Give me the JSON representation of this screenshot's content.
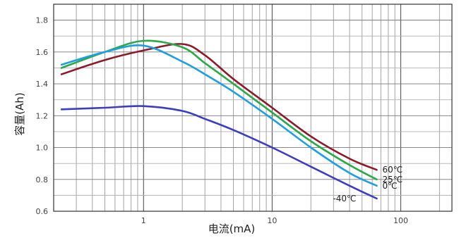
{
  "chart_data": {
    "type": "line",
    "title": "",
    "xlabel": "电流(mA)",
    "ylabel": "容量(Ah)",
    "xscale": "log",
    "xlim": [
      0.2,
      250
    ],
    "ylim": [
      0.6,
      1.9
    ],
    "grid": true,
    "x_ticks": [
      {
        "value": 1,
        "label": "1"
      },
      {
        "value": 10,
        "label": "10"
      },
      {
        "value": 100,
        "label": "100"
      }
    ],
    "y_ticks": [
      {
        "value": 0.6,
        "label": "0.6"
      },
      {
        "value": 0.8,
        "label": "0.8"
      },
      {
        "value": 1.0,
        "label": "1.0"
      },
      {
        "value": 1.2,
        "label": "1.2"
      },
      {
        "value": 1.4,
        "label": "1.4"
      },
      {
        "value": 1.6,
        "label": "1.6"
      },
      {
        "value": 1.8,
        "label": "1.8"
      }
    ],
    "series": [
      {
        "name": "60℃",
        "color": "#8b1a2b",
        "points": [
          [
            0.23,
            1.46
          ],
          [
            0.5,
            1.55
          ],
          [
            1.0,
            1.61
          ],
          [
            2.0,
            1.65
          ],
          [
            3.0,
            1.58
          ],
          [
            5.0,
            1.43
          ],
          [
            10.0,
            1.25
          ],
          [
            20.0,
            1.07
          ],
          [
            40.0,
            0.93
          ],
          [
            65.0,
            0.86
          ]
        ]
      },
      {
        "name": "25℃",
        "color": "#2aa84a",
        "points": [
          [
            0.23,
            1.5
          ],
          [
            0.5,
            1.6
          ],
          [
            1.0,
            1.67
          ],
          [
            2.0,
            1.63
          ],
          [
            3.0,
            1.53
          ],
          [
            5.0,
            1.4
          ],
          [
            10.0,
            1.22
          ],
          [
            20.0,
            1.04
          ],
          [
            40.0,
            0.89
          ],
          [
            65.0,
            0.8
          ]
        ]
      },
      {
        "name": "0℃",
        "color": "#1f9fdd",
        "points": [
          [
            0.23,
            1.52
          ],
          [
            0.5,
            1.6
          ],
          [
            1.0,
            1.64
          ],
          [
            2.0,
            1.54
          ],
          [
            3.0,
            1.46
          ],
          [
            5.0,
            1.35
          ],
          [
            10.0,
            1.18
          ],
          [
            20.0,
            1.0
          ],
          [
            40.0,
            0.84
          ],
          [
            65.0,
            0.76
          ]
        ]
      },
      {
        "name": "-40℃",
        "color": "#3d3dbf",
        "points": [
          [
            0.23,
            1.24
          ],
          [
            0.5,
            1.25
          ],
          [
            1.0,
            1.26
          ],
          [
            2.0,
            1.23
          ],
          [
            3.0,
            1.18
          ],
          [
            5.0,
            1.11
          ],
          [
            10.0,
            1.0
          ],
          [
            20.0,
            0.88
          ],
          [
            40.0,
            0.76
          ],
          [
            65.0,
            0.68
          ]
        ]
      }
    ]
  }
}
